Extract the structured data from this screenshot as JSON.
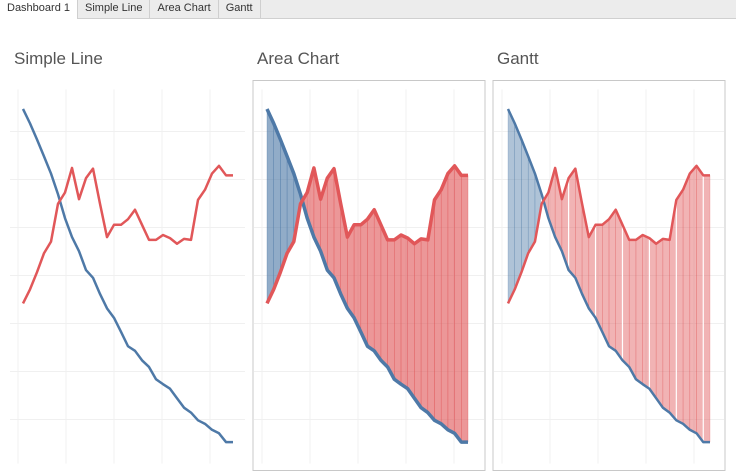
{
  "tabs": [
    "Dashboard 1",
    "Simple Line",
    "Area Chart",
    "Gantt"
  ],
  "chart_data": [
    {
      "type": "line",
      "title": "Simple Line",
      "ylim": [
        0,
        100
      ],
      "grid": true,
      "series": [
        {
          "color": "#4e79a7",
          "values": [
            97.3,
            93.2,
            88.6,
            83.8,
            78.9,
            73.0,
            66.2,
            60.8,
            56.8,
            51.4,
            49.2,
            44.6,
            40.5,
            37.8,
            33.8,
            29.7,
            28.4,
            25.7,
            23.8,
            20.3,
            18.9,
            17.6,
            14.9,
            12.2,
            10.8,
            8.6,
            7.6,
            5.9,
            4.9,
            2.4,
            2.4
          ]
        },
        {
          "color": "#e15759",
          "values": [
            41.9,
            45.9,
            50.8,
            56.2,
            59.5,
            70.3,
            73.5,
            80.5,
            71.6,
            77.6,
            80.3,
            70.3,
            60.8,
            64.3,
            64.3,
            65.9,
            68.6,
            64.3,
            60.0,
            60.0,
            61.4,
            60.5,
            58.9,
            60.3,
            60.0,
            71.4,
            74.3,
            78.9,
            81.1,
            78.4,
            78.4
          ]
        }
      ]
    },
    {
      "type": "area",
      "title": "Area Chart",
      "ylim": [
        0,
        100
      ],
      "grid": true,
      "series": [
        {
          "color": "#4e79a7",
          "values": [
            97.3,
            93.2,
            88.6,
            83.8,
            78.9,
            73.0,
            66.2,
            60.8,
            56.8,
            51.4,
            49.2,
            44.6,
            40.5,
            37.8,
            33.8,
            29.7,
            28.4,
            25.7,
            23.8,
            20.3,
            18.9,
            17.6,
            14.9,
            12.2,
            10.8,
            8.6,
            7.6,
            5.9,
            4.9,
            2.4,
            2.4
          ]
        },
        {
          "color": "#e15759",
          "values": [
            41.9,
            45.9,
            50.8,
            56.2,
            59.5,
            70.3,
            73.5,
            80.5,
            71.6,
            77.6,
            80.3,
            70.3,
            60.8,
            64.3,
            64.3,
            65.9,
            68.6,
            64.3,
            60.0,
            60.0,
            61.4,
            60.5,
            58.9,
            60.3,
            60.0,
            71.4,
            74.3,
            78.9,
            81.1,
            78.4,
            78.4
          ]
        }
      ]
    },
    {
      "type": "gantt",
      "title": "Gantt",
      "ylim": [
        0,
        100
      ],
      "grid": true,
      "series": [
        {
          "color": "#4e79a7",
          "values": [
            97.3,
            93.2,
            88.6,
            83.8,
            78.9,
            73.0,
            66.2,
            60.8,
            56.8,
            51.4,
            49.2,
            44.6,
            40.5,
            37.8,
            33.8,
            29.7,
            28.4,
            25.7,
            23.8,
            20.3,
            18.9,
            17.6,
            14.9,
            12.2,
            10.8,
            8.6,
            7.6,
            5.9,
            4.9,
            2.4,
            2.4
          ]
        },
        {
          "color": "#e15759",
          "values": [
            41.9,
            45.9,
            50.8,
            56.2,
            59.5,
            70.3,
            73.5,
            80.5,
            71.6,
            77.6,
            80.3,
            70.3,
            60.8,
            64.3,
            64.3,
            65.9,
            68.6,
            64.3,
            60.0,
            60.0,
            61.4,
            60.5,
            58.9,
            60.3,
            60.0,
            71.4,
            74.3,
            78.9,
            81.1,
            78.4,
            78.4
          ]
        }
      ]
    }
  ]
}
